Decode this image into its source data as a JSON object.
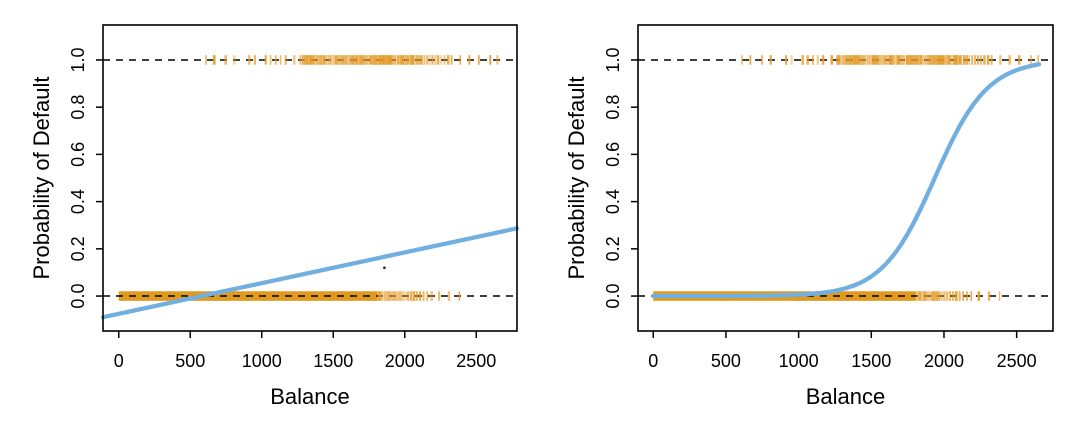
{
  "figure": {
    "background": "#ffffff",
    "colors": {
      "fit_line": "#72AFE1",
      "rug_band": "#E09B1F",
      "rug_tick": "#E39A26",
      "dashed_reference": "#000000",
      "axis": "#000000",
      "stray_dot": "#333333"
    }
  },
  "chart_data": {
    "type": "line",
    "description_left": "Linear regression fit of default probability on balance with rug of observations",
    "description_right": "Logistic regression fit of default probability on balance with rug of observations",
    "panels": [
      {
        "fit_type": "linear",
        "fit": {
          "intercept": -0.0752,
          "slope": 0.00013
        },
        "fit_x_range": [
          -110,
          2785
        ],
        "xlabel": "Balance",
        "ylabel": "Probability of Default",
        "x_ticks": [
          0,
          500,
          1000,
          1500,
          2000,
          2500
        ],
        "y_ticks": [
          0,
          0.2,
          0.4,
          0.6,
          0.8,
          1
        ],
        "y_tick_labels": [
          "0.0",
          "0.2",
          "0.4",
          "0.6",
          "0.8",
          "1.0"
        ],
        "xlim": [
          -110,
          2785
        ],
        "ylim": [
          -0.148,
          1.148
        ],
        "hlines": [
          0,
          1
        ],
        "grid": false,
        "legend": null,
        "stray_dot": {
          "x": 1858,
          "y": 0.12
        }
      },
      {
        "fit_type": "logistic",
        "fit": {
          "b0": -10.6513,
          "b1": 0.0055
        },
        "fit_x_range": [
          0,
          2654
        ],
        "xlabel": "Balance",
        "ylabel": "Probability of Default",
        "x_ticks": [
          0,
          500,
          1000,
          1500,
          2000,
          2500
        ],
        "y_ticks": [
          0,
          0.2,
          0.4,
          0.6,
          0.8,
          1
        ],
        "y_tick_labels": [
          "0.0",
          "0.2",
          "0.4",
          "0.6",
          "0.8",
          "1.0"
        ],
        "xlim": [
          -105,
          2750
        ],
        "ylim": [
          -0.148,
          1.148
        ],
        "hlines": [
          0,
          1
        ],
        "grid": false,
        "legend": null,
        "stray_dot": null
      }
    ],
    "rug": {
      "top_value": 1,
      "bottom_value": 0,
      "bottom_band_range": [
        0,
        1810
      ],
      "bottom_ticks": [
        1822,
        1836,
        1850,
        1864,
        1878,
        1892,
        1906,
        1921,
        1936,
        1952,
        1968,
        1985,
        2003,
        2022,
        2042,
        2063,
        2085,
        2108,
        2132,
        2158,
        2188,
        2240,
        2310,
        2382
      ],
      "top_ticks": [
        610,
        668,
        748,
        808,
        913,
        952,
        1028,
        1062,
        1098,
        1132,
        1168,
        1228,
        1268,
        1280,
        1291,
        1304,
        1316,
        1327,
        1340,
        1352,
        1363,
        1376,
        1388,
        1399,
        1412,
        1424,
        1436,
        1448,
        1459,
        1472,
        1484,
        1496,
        1508,
        1519,
        1532,
        1544,
        1556,
        1568,
        1579,
        1592,
        1604,
        1616,
        1628,
        1639,
        1652,
        1664,
        1676,
        1688,
        1699,
        1712,
        1724,
        1736,
        1748,
        1759,
        1772,
        1784,
        1796,
        1808,
        1819,
        1832,
        1844,
        1856,
        1868,
        1879,
        1892,
        1904,
        1916,
        1928,
        1939,
        1952,
        1964,
        1976,
        1988,
        1999,
        2012,
        2024,
        2036,
        2048,
        2059,
        2072,
        2084,
        2096,
        2108,
        2119,
        2138,
        2156,
        2174,
        2194,
        2214,
        2234,
        2254,
        2278,
        2304,
        2328,
        2388,
        2452,
        2518,
        2598,
        2648
      ]
    }
  }
}
